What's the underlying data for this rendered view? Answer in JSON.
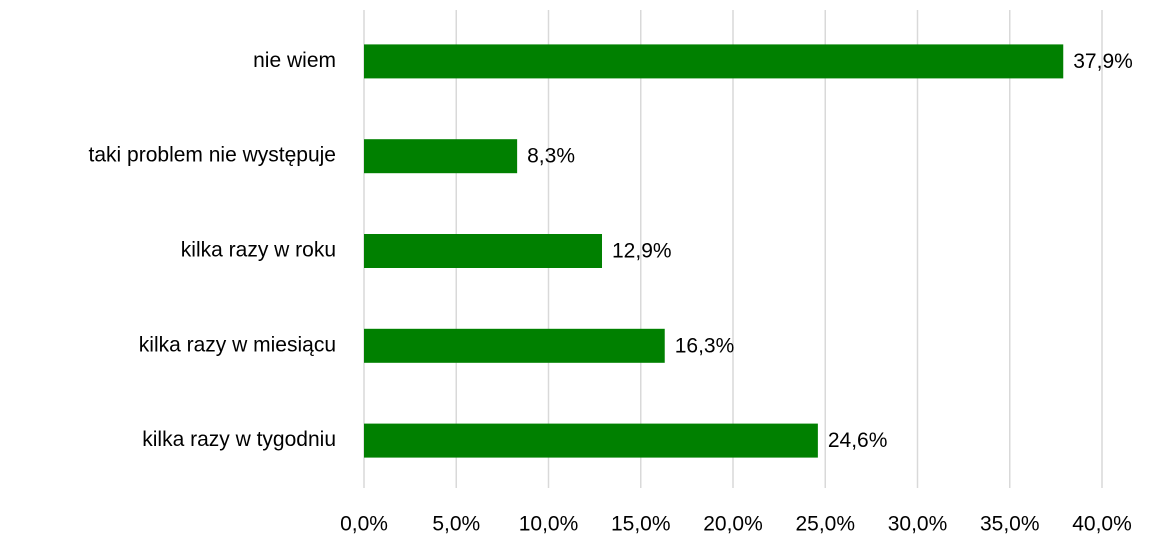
{
  "chart_data": {
    "type": "hbar",
    "categories": [
      "nie wiem",
      "taki problem nie występuje",
      "kilka razy w roku",
      "kilka razy w miesiącu",
      "kilka razy w tygodniu"
    ],
    "values": [
      37.9,
      8.3,
      12.9,
      16.3,
      24.6
    ],
    "value_labels": [
      "37,9%",
      "8,3%",
      "12,9%",
      "16,3%",
      "24,6%"
    ],
    "color": "#008000",
    "xlim": [
      0,
      40
    ],
    "xticks": [
      {
        "value": 0,
        "label": "0,0%"
      },
      {
        "value": 5,
        "label": "5,0%"
      },
      {
        "value": 10,
        "label": "10,0%"
      },
      {
        "value": 15,
        "label": "15,0%"
      },
      {
        "value": 20,
        "label": "20,0%"
      },
      {
        "value": 25,
        "label": "25,0%"
      },
      {
        "value": 30,
        "label": "30,0%"
      },
      {
        "value": 35,
        "label": "35,0%"
      },
      {
        "value": 40,
        "label": "40,0%"
      }
    ],
    "grid": true
  }
}
